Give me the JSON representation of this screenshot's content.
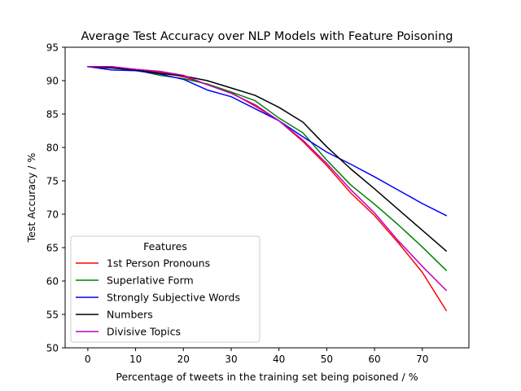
{
  "chart_data": {
    "type": "line",
    "title": "Average Test Accuracy over NLP Models with Feature Poisoning",
    "xlabel": "Percentage of tweets in the training set being poisoned / %",
    "ylabel": "Test Accuracy / %",
    "xlim": [
      -4.75,
      79.75
    ],
    "ylim": [
      50,
      95
    ],
    "xticks": [
      0,
      10,
      20,
      30,
      40,
      50,
      60,
      70
    ],
    "yticks": [
      50,
      55,
      60,
      65,
      70,
      75,
      80,
      85,
      90,
      95
    ],
    "grid": false,
    "legend": {
      "title": "Features",
      "placement": "lower-left"
    },
    "x": [
      0,
      5,
      10,
      15,
      20,
      25,
      30,
      35,
      40,
      45,
      50,
      55,
      60,
      65,
      70,
      75
    ],
    "series": [
      {
        "name": "1st Person Pronouns",
        "color": "#ff0000",
        "values": [
          92.1,
          92.0,
          91.7,
          91.3,
          90.6,
          89.4,
          88.2,
          86.2,
          84.0,
          80.9,
          77.3,
          73.2,
          69.8,
          65.7,
          61.3,
          55.6
        ]
      },
      {
        "name": "Superlative Form",
        "color": "#008000",
        "values": [
          92.1,
          91.9,
          91.6,
          90.8,
          90.3,
          89.5,
          88.3,
          87.0,
          84.4,
          82.2,
          78.1,
          74.4,
          71.5,
          68.4,
          65.1,
          61.6
        ]
      },
      {
        "name": "Strongly Subjective Words",
        "color": "#0000ff",
        "values": [
          92.1,
          91.6,
          91.5,
          91.0,
          90.2,
          88.6,
          87.6,
          85.8,
          84.0,
          81.6,
          79.3,
          77.5,
          75.6,
          73.6,
          71.6,
          69.8
        ]
      },
      {
        "name": "Numbers",
        "color": "#000000",
        "values": [
          92.1,
          91.9,
          91.6,
          91.1,
          90.7,
          90.0,
          88.9,
          87.8,
          86.0,
          83.8,
          80.1,
          76.8,
          73.8,
          70.7,
          67.6,
          64.5
        ]
      },
      {
        "name": "Divisive Topics",
        "color": "#bf00bf",
        "values": [
          92.1,
          92.1,
          91.7,
          91.4,
          90.8,
          89.4,
          88.1,
          86.4,
          84.0,
          81.1,
          77.6,
          73.7,
          70.2,
          66.0,
          62.2,
          58.6
        ]
      }
    ]
  }
}
